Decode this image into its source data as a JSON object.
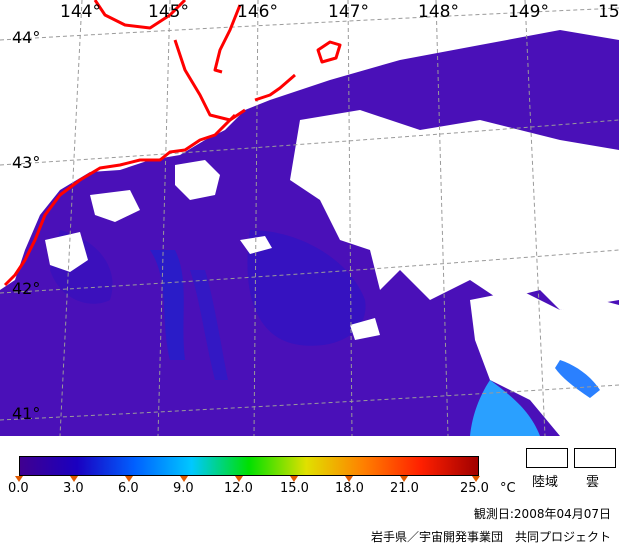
{
  "map": {
    "lon_labels": [
      "144°",
      "145°",
      "146°",
      "147°",
      "148°",
      "149°",
      "15"
    ],
    "lat_labels": [
      "44°",
      "43°",
      "42°",
      "41°"
    ],
    "colors": {
      "sea_deep": "#3f05a0",
      "sea_mid": "#4a10b8",
      "sea_cool": "#2a16c4",
      "coast": "#ff0000",
      "cloud": "#ffffff",
      "grid": "#9a9a9a",
      "warm_patch": "#2aa0ff"
    }
  },
  "colorbar": {
    "min": 0.0,
    "max": 25.0,
    "ticks": [
      "0.0",
      "3.0",
      "6.0",
      "9.0",
      "12.0",
      "15.0",
      "18.0",
      "21.0",
      "25.0"
    ],
    "unit": "°C",
    "gradient": [
      "#400090",
      "#1a00c0",
      "#0060ff",
      "#00c8ff",
      "#00e000",
      "#e0e000",
      "#ff8000",
      "#ff2000",
      "#a00000"
    ]
  },
  "legend": {
    "land_label": "陸域",
    "cloud_label": "雲"
  },
  "footer": {
    "date": "観測日:2008年04月07日",
    "credit": "岩手県／宇宙開発事業団　共同プロジェクト"
  }
}
